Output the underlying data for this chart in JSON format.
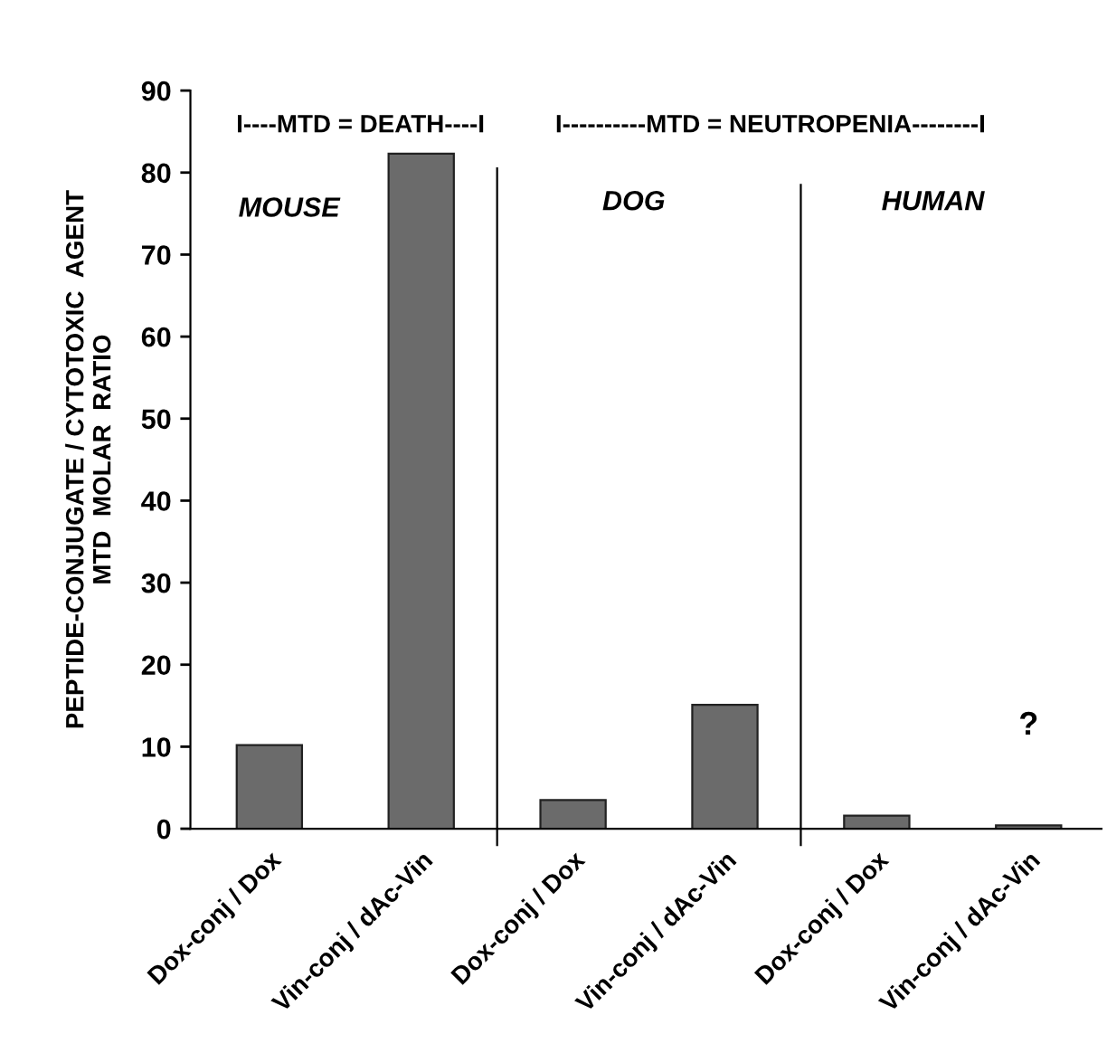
{
  "chart_data": {
    "type": "bar",
    "categories": [
      "Dox-conj / Dox",
      "Vin-conj / dAc-Vin",
      "Dox-conj / Dox",
      "Vin-conj / dAc-Vin",
      "Dox-conj / Dox",
      "Vin-conj / dAc-Vin"
    ],
    "values": [
      10.2,
      82.3,
      3.5,
      15.1,
      1.6,
      0.4
    ],
    "color": "#6b6b6b",
    "ylabel": "PEPTIDE-CONJUGATE / CYTOTOXIC  AGENT\nMTD  MOLAR  RATIO",
    "ylim": [
      0,
      90
    ],
    "yticks": [
      0,
      10,
      20,
      30,
      40,
      50,
      60,
      70,
      80,
      90
    ],
    "grid": false,
    "annotations": [
      "I----MTD = DEATH----I",
      "I----------MTD = NEUTROPENIA--------I",
      "MOUSE",
      "DOG",
      "HUMAN",
      "?"
    ]
  }
}
